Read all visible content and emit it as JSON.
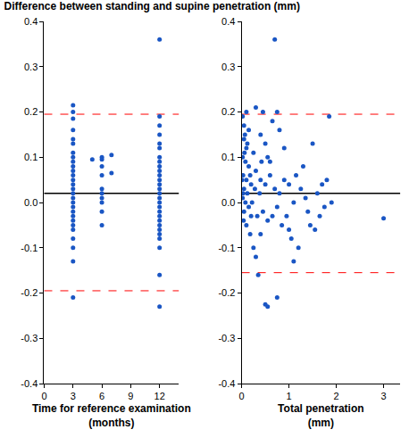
{
  "chart_data": [
    {
      "type": "scatter",
      "title": "Difference between standing and supine penetration (mm)",
      "x_label": "Time for reference examination (months)",
      "color": "#1a56c4",
      "marker": "circle",
      "grid": false,
      "xlim": [
        0,
        14
      ],
      "xticks": [
        0,
        3,
        6,
        9,
        12
      ],
      "ylim": [
        -0.4,
        0.4
      ],
      "yticks": [
        -0.4,
        -0.3,
        -0.2,
        -0.1,
        {
          "value": 0,
          "label": "0.0"
        },
        0.1,
        0.2,
        0.3,
        0.4
      ],
      "x": [
        3,
        3,
        3,
        3,
        3,
        3,
        3,
        3,
        3,
        3,
        3,
        3,
        3,
        3,
        3,
        3,
        3,
        3,
        3,
        3,
        3,
        3,
        3,
        3,
        3,
        3,
        3,
        3,
        5,
        6,
        6,
        6,
        6,
        6,
        6,
        6,
        6,
        6,
        6,
        7,
        7,
        12,
        12,
        12,
        12,
        12,
        12,
        12,
        12,
        12,
        12,
        12,
        12,
        12,
        12,
        12,
        12,
        12,
        12,
        12,
        12,
        12,
        12,
        12,
        12,
        12,
        12,
        12,
        12
      ],
      "values": [
        0.215,
        0.2,
        0.185,
        0.16,
        0.14,
        0.13,
        0.11,
        0.1,
        0.09,
        0.08,
        0.07,
        0.06,
        0.05,
        0.04,
        0.03,
        0.02,
        0.01,
        0.0,
        -0.01,
        -0.02,
        -0.03,
        -0.04,
        -0.05,
        -0.06,
        -0.08,
        -0.1,
        -0.13,
        -0.21,
        0.095,
        0.1,
        0.095,
        0.08,
        0.06,
        0.03,
        0.02,
        0.01,
        0.0,
        -0.02,
        -0.05,
        0.105,
        0.065,
        0.36,
        0.19,
        0.17,
        0.15,
        0.13,
        0.12,
        0.1,
        0.09,
        0.08,
        0.07,
        0.06,
        0.05,
        0.04,
        0.03,
        0.02,
        0.01,
        0.0,
        -0.01,
        -0.02,
        -0.03,
        -0.04,
        -0.05,
        -0.06,
        -0.07,
        -0.08,
        -0.1,
        -0.16,
        -0.23
      ],
      "hlines": [
        {
          "value": 0.02,
          "color": "#000000",
          "line_style": "solid"
        },
        {
          "value": 0.195,
          "color": "#ff0000",
          "line_style": "dash"
        },
        {
          "value": -0.195,
          "color": "#ff0000",
          "line_style": "dash"
        }
      ]
    },
    {
      "type": "scatter",
      "x_label": "Total penetration (mm)",
      "color": "#1a56c4",
      "marker": "circle",
      "grid": false,
      "xlim": [
        0,
        3.35
      ],
      "xticks": [
        0,
        1,
        2,
        3
      ],
      "ylim": [
        -0.4,
        0.4
      ],
      "yticks": [
        -0.4,
        -0.3,
        -0.2,
        -0.1,
        {
          "value": 0,
          "label": "0.0"
        },
        0.1,
        0.2,
        0.3,
        0.4
      ],
      "x": [
        0.02,
        0.05,
        0.1,
        0.15,
        0.05,
        0.1,
        0.02,
        0.08,
        0.15,
        0.03,
        0.1,
        0.2,
        0.05,
        0.12,
        0.02,
        0.08,
        0.15,
        0.05,
        0.2,
        0.1,
        0.18,
        0.25,
        0.3,
        0.35,
        0.3,
        0.45,
        0.4,
        0.5,
        0.55,
        0.65,
        0.7,
        0.75,
        0.8,
        0.9,
        0.3,
        0.4,
        0.5,
        0.6,
        0.7,
        0.8,
        0.9,
        1.0,
        1.1,
        0.45,
        0.55,
        0.65,
        0.75,
        0.85,
        0.95,
        1.05,
        1.1,
        1.2,
        0.5,
        0.55,
        0.75,
        0.4,
        1.25,
        1.3,
        1.35,
        1.4,
        1.45,
        1.5,
        1.55,
        1.6,
        1.65,
        1.7,
        1.75,
        1.8,
        1.85,
        1.9,
        1.15,
        1.0,
        0.6,
        0.25,
        3.0,
        0.01,
        0.03,
        0.04,
        0.06,
        0.07,
        0.12,
        0.18,
        0.22,
        0.28,
        0.33,
        0.38,
        0.42
      ],
      "values": [
        0.19,
        0.17,
        0.2,
        0.16,
        0.14,
        0.12,
        0.1,
        0.09,
        0.08,
        0.06,
        0.05,
        0.04,
        0.03,
        0.02,
        0.01,
        0.0,
        -0.01,
        -0.02,
        -0.03,
        -0.05,
        -0.07,
        -0.1,
        -0.12,
        -0.16,
        0.21,
        0.2,
        0.15,
        0.13,
        0.1,
        0.18,
        0.36,
        0.2,
        0.16,
        0.12,
        0.07,
        0.05,
        0.04,
        0.06,
        0.03,
        0.02,
        0.05,
        0.04,
        0.0,
        -0.02,
        -0.04,
        -0.03,
        -0.01,
        -0.05,
        -0.03,
        -0.08,
        -0.13,
        -0.1,
        -0.225,
        -0.23,
        -0.21,
        -0.07,
        0.03,
        0.08,
        0.01,
        -0.02,
        -0.05,
        0.13,
        -0.06,
        0.02,
        -0.03,
        0.04,
        -0.01,
        0.05,
        0.19,
        0.0,
        0.06,
        -0.06,
        0.09,
        0.11,
        -0.035,
        0.05,
        0.02,
        -0.04,
        0.11,
        0.15,
        0.13,
        0.06,
        0.0,
        0.03,
        -0.03,
        0.02,
        0.09
      ],
      "hlines": [
        {
          "value": 0.02,
          "color": "#000000",
          "line_style": "solid"
        },
        {
          "value": 0.195,
          "color": "#ff0000",
          "line_style": "dash"
        },
        {
          "value": -0.155,
          "color": "#ff0000",
          "line_style": "dash"
        }
      ]
    }
  ]
}
